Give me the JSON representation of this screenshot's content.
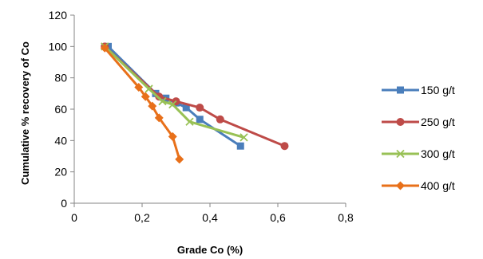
{
  "chart_data": {
    "type": "line",
    "title": "",
    "xlabel": "Grade Co (%)",
    "ylabel": "Cumulative % recovery of Co",
    "xlim": [
      0,
      0.8
    ],
    "ylim": [
      0,
      120
    ],
    "xticks": [
      "0",
      "0,2",
      "0,4",
      "0,6",
      "0,8"
    ],
    "yticks": [
      "0",
      "20",
      "40",
      "60",
      "80",
      "100",
      "120"
    ],
    "grid": false,
    "legend_position": "right",
    "series": [
      {
        "name": "150 g/t",
        "color": "#4a7ebb",
        "marker": "square",
        "x": [
          0.1,
          0.24,
          0.27,
          0.3,
          0.33,
          0.37,
          0.49
        ],
        "y": [
          100,
          70,
          67,
          64,
          61,
          53.5,
          36.5
        ]
      },
      {
        "name": "250 g/t",
        "color": "#be4b48",
        "marker": "circle",
        "x": [
          0.09,
          0.25,
          0.3,
          0.37,
          0.43,
          0.62
        ],
        "y": [
          100,
          68,
          65,
          61,
          53.5,
          36.5
        ]
      },
      {
        "name": "300 g/t",
        "color": "#98c155",
        "marker": "x",
        "x": [
          0.09,
          0.22,
          0.26,
          0.29,
          0.34,
          0.5
        ],
        "y": [
          100,
          73,
          65,
          63,
          52,
          42
        ]
      },
      {
        "name": "400 g/t",
        "color": "#e8701a",
        "marker": "diamond",
        "x": [
          0.09,
          0.19,
          0.21,
          0.23,
          0.25,
          0.29,
          0.31
        ],
        "y": [
          99,
          74,
          68,
          62,
          54.5,
          42.5,
          28
        ]
      }
    ]
  }
}
